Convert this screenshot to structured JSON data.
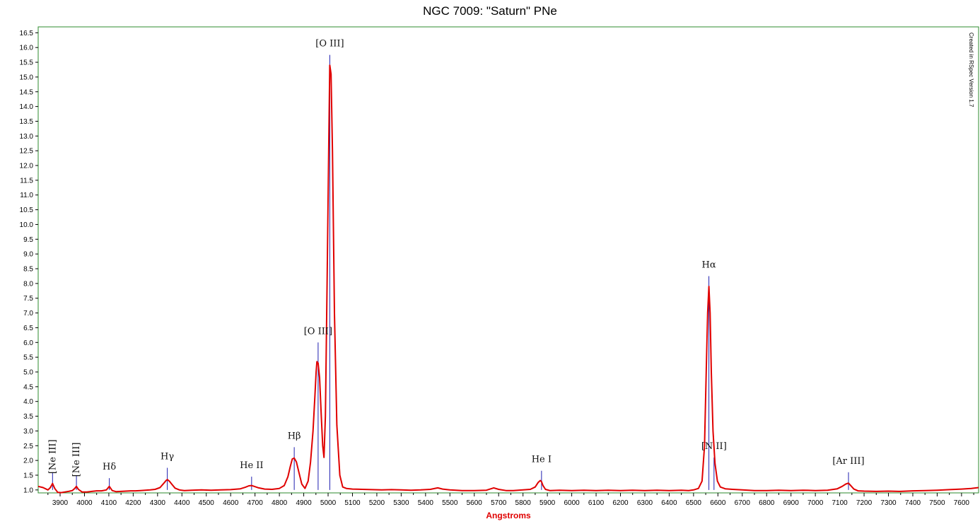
{
  "chart_data": {
    "type": "line",
    "title": "NGC 7009: \"Saturn\" PNe",
    "xlabel": "Angstroms",
    "ylabel": "",
    "xlim": [
      3810,
      7670
    ],
    "ylim": [
      0.9,
      16.7
    ],
    "grid": false,
    "legend": "none",
    "watermark": "Created in RSpec Version 1.7",
    "x_ticks": [
      3900,
      4000,
      4100,
      4200,
      4300,
      4400,
      4500,
      4600,
      4700,
      4800,
      4900,
      5000,
      5100,
      5200,
      5300,
      5400,
      5500,
      5600,
      5700,
      5800,
      5900,
      6000,
      6100,
      6200,
      6300,
      6400,
      6500,
      6600,
      6700,
      6800,
      6900,
      7000,
      7100,
      7200,
      7300,
      7400,
      7500,
      7600
    ],
    "y_ticks": [
      1.0,
      1.5,
      2.0,
      2.5,
      3.0,
      3.5,
      4.0,
      4.5,
      5.0,
      5.5,
      6.0,
      6.5,
      7.0,
      7.5,
      8.0,
      8.5,
      9.0,
      9.5,
      10.0,
      10.5,
      11.0,
      11.5,
      12.0,
      12.5,
      13.0,
      13.5,
      14.0,
      14.5,
      15.0,
      15.5,
      16.0,
      16.5
    ],
    "y_tick_labels": [
      "1.0",
      "1.5",
      "2.0",
      "2.5",
      "3.0",
      "3.5",
      "4.0",
      "4.5",
      "5.0",
      "5.5",
      "6.0",
      "6.5",
      "7.0",
      "7.5",
      "8.0",
      "8.5",
      "9.0",
      "9.5",
      "10.0",
      "10.5",
      "11.0",
      "11.5",
      "12.0",
      "12.5",
      "13.0",
      "13.5",
      "14.0",
      "14.5",
      "15.0",
      "15.5",
      "16.0",
      "16.5"
    ],
    "series": [
      {
        "color": "#e00000",
        "x": [
          3810,
          3830,
          3850,
          3860,
          3869,
          3878,
          3890,
          3905,
          3920,
          3935,
          3950,
          3960,
          3967,
          3975,
          3990,
          4010,
          4030,
          4050,
          4070,
          4090,
          4102,
          4114,
          4130,
          4150,
          4170,
          4190,
          4210,
          4230,
          4250,
          4270,
          4290,
          4310,
          4325,
          4335,
          4340,
          4348,
          4358,
          4372,
          4390,
          4410,
          4440,
          4480,
          4520,
          4560,
          4600,
          4640,
          4660,
          4675,
          4686,
          4697,
          4715,
          4740,
          4770,
          4800,
          4820,
          4835,
          4845,
          4853,
          4861,
          4870,
          4880,
          4892,
          4905,
          4918,
          4928,
          4938,
          4946,
          4951,
          4954,
          4959,
          4965,
          4972,
          4978,
          4983,
          4989,
          4996,
          5003,
          5007,
          5012,
          5018,
          5026,
          5036,
          5048,
          5060,
          5075,
          5100,
          5140,
          5180,
          5220,
          5260,
          5300,
          5340,
          5380,
          5420,
          5450,
          5470,
          5500,
          5550,
          5600,
          5650,
          5680,
          5700,
          5730,
          5760,
          5800,
          5830,
          5850,
          5862,
          5871,
          5876,
          5882,
          5892,
          5910,
          5950,
          6000,
          6050,
          6100,
          6150,
          6200,
          6250,
          6300,
          6350,
          6400,
          6450,
          6480,
          6500,
          6520,
          6535,
          6545,
          6552,
          6558,
          6563,
          6568,
          6573,
          6580,
          6588,
          6598,
          6610,
          6630,
          6660,
          6700,
          6750,
          6800,
          6850,
          6900,
          6950,
          7000,
          7050,
          7090,
          7110,
          7125,
          7136,
          7145,
          7158,
          7175,
          7200,
          7250,
          7300,
          7350,
          7400,
          7450,
          7500,
          7550,
          7600,
          7640,
          7670
        ],
        "values": [
          1.12,
          1.08,
          1.0,
          1.08,
          1.22,
          1.05,
          0.92,
          0.91,
          0.93,
          0.95,
          0.98,
          1.05,
          1.12,
          1.02,
          0.93,
          0.93,
          0.95,
          0.97,
          0.97,
          1.0,
          1.12,
          0.98,
          0.94,
          0.95,
          0.96,
          0.97,
          0.97,
          0.98,
          0.99,
          1.0,
          1.02,
          1.08,
          1.22,
          1.32,
          1.35,
          1.3,
          1.2,
          1.06,
          1.0,
          0.98,
          0.99,
          1.0,
          0.99,
          1.0,
          1.01,
          1.04,
          1.09,
          1.14,
          1.15,
          1.12,
          1.07,
          1.03,
          1.02,
          1.05,
          1.15,
          1.45,
          1.8,
          2.05,
          2.08,
          1.95,
          1.6,
          1.2,
          1.05,
          1.3,
          1.95,
          3.0,
          4.2,
          5.0,
          5.35,
          5.3,
          4.8,
          3.5,
          2.5,
          2.1,
          3.5,
          8.0,
          13.0,
          15.4,
          15.1,
          12.5,
          7.0,
          3.2,
          1.5,
          1.1,
          1.05,
          1.03,
          1.02,
          1.01,
          1.0,
          1.01,
          1.0,
          0.99,
          1.0,
          1.02,
          1.07,
          1.03,
          1.0,
          0.98,
          0.98,
          0.99,
          1.07,
          1.02,
          0.98,
          0.98,
          1.0,
          1.02,
          1.1,
          1.25,
          1.32,
          1.28,
          1.15,
          1.02,
          0.98,
          0.99,
          0.98,
          0.99,
          0.98,
          0.99,
          0.98,
          0.99,
          0.98,
          0.99,
          0.98,
          0.99,
          0.98,
          1.0,
          1.05,
          1.3,
          2.5,
          5.0,
          7.0,
          7.9,
          7.0,
          5.0,
          3.0,
          1.9,
          1.3,
          1.1,
          1.04,
          1.02,
          1.0,
          0.98,
          0.98,
          0.99,
          0.98,
          0.99,
          0.98,
          0.99,
          1.04,
          1.12,
          1.2,
          1.23,
          1.15,
          1.03,
          0.97,
          0.96,
          0.95,
          0.96,
          0.95,
          0.97,
          0.98,
          0.99,
          1.01,
          1.03,
          1.05,
          1.08
        ]
      }
    ],
    "markers": [
      {
        "label": "[Ne III]",
        "x": 3869,
        "top": 1.6,
        "rotated": true
      },
      {
        "label": "[Ne III]",
        "x": 3967,
        "top": 1.5,
        "rotated": true
      },
      {
        "label": "Hδ",
        "x": 4102,
        "top": 1.4,
        "rotated": false
      },
      {
        "label": "Hγ",
        "x": 4340,
        "top": 1.75,
        "rotated": false
      },
      {
        "label": "He II",
        "x": 4686,
        "top": 1.45,
        "rotated": false
      },
      {
        "label": "Hβ",
        "x": 4861,
        "top": 2.45,
        "rotated": false
      },
      {
        "label": "[O III]",
        "x": 4959,
        "top": 6.0,
        "rotated": false
      },
      {
        "label": "[O III]",
        "x": 5007,
        "top": 15.75,
        "rotated": false
      },
      {
        "label": "He I",
        "x": 5876,
        "top": 1.65,
        "rotated": false
      },
      {
        "label": "Hα",
        "x": 6563,
        "top": 8.25,
        "rotated": false
      },
      {
        "label": "[N II]",
        "x": 6584,
        "top": 2.1,
        "rotated": false
      },
      {
        "label": "[Ar III]",
        "x": 7136,
        "top": 1.6,
        "rotated": false
      }
    ],
    "marker_color": "#1f1fb0",
    "frame_color": "#2e8b2e"
  }
}
